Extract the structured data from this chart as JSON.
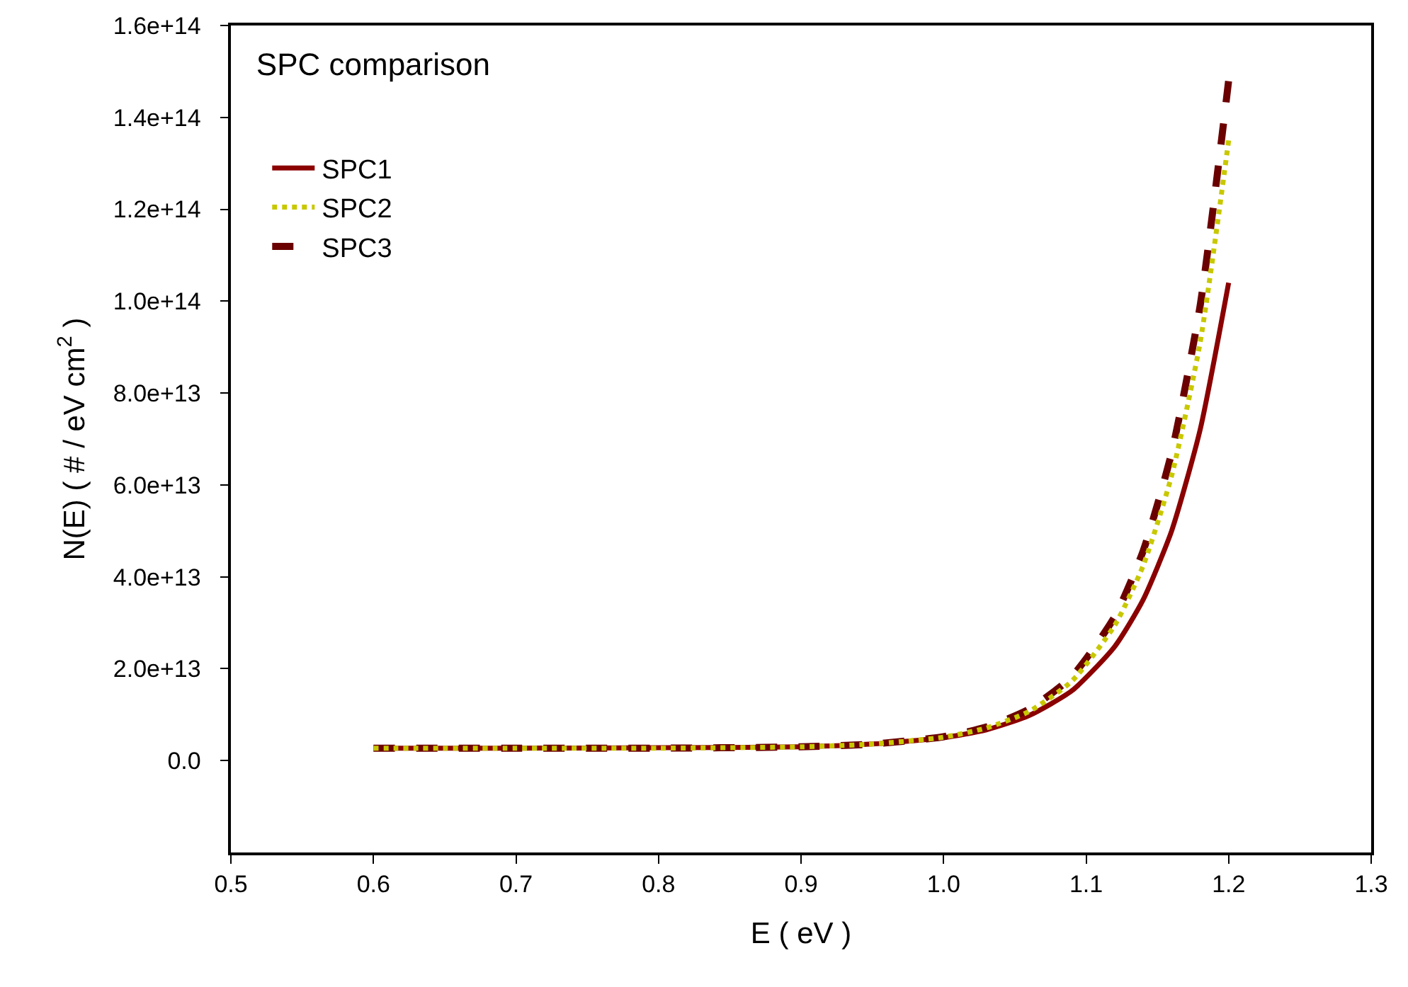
{
  "chart_data": {
    "type": "line",
    "title": "SPC comparison",
    "xlabel": "E ( eV )",
    "ylabel": "N(E) ( # / eV cm$^{2}$ )",
    "x": [
      0.6,
      0.7,
      0.8,
      0.9,
      0.95,
      1.0,
      1.03,
      1.06,
      1.09,
      1.12,
      1.14,
      1.16,
      1.18,
      1.2
    ],
    "series": [
      {
        "name": "SPC1",
        "color": "#8b0000",
        "line_style": "solid",
        "values": [
          2700000000000.0,
          2700000000000.0,
          2800000000000.0,
          3000000000000.0,
          3600000000000.0,
          5000000000000.0,
          6700000000000.0,
          9800000000000.0,
          15200000000000.0,
          24800000000000.0,
          35000000000000.0,
          50000000000000.0,
          72000000000000.0,
          104000000000000.0
        ]
      },
      {
        "name": "SPC2",
        "color": "#c8c800",
        "line_style": "dotted",
        "values": [
          2700000000000.0,
          2700000000000.0,
          2700000000000.0,
          3000000000000.0,
          3600000000000.0,
          5100000000000.0,
          7100000000000.0,
          10700000000000.0,
          17300000000000.0,
          29400000000000.0,
          42400000000000.0,
          62000000000000.0,
          91000000000000.0,
          135000000000000.0
        ]
      },
      {
        "name": "SPC3",
        "color": "#6b0000",
        "line_style": "dashed",
        "values": [
          2700000000000.0,
          2700000000000.0,
          2700000000000.0,
          3000000000000.0,
          3600000000000.0,
          5200000000000.0,
          7300000000000.0,
          11200000000000.0,
          18300000000000.0,
          31300000000000.0,
          45600000000000.0,
          67000000000000.0,
          99000000000000.0,
          148000000000000.0
        ]
      }
    ],
    "xlim": [
      0.5,
      1.3
    ],
    "xticks": [
      0.5,
      0.6,
      0.7,
      0.8,
      0.9,
      {
        "value": 1.0,
        "label": "1.0"
      },
      1.1,
      1.2,
      1.3
    ],
    "ylim": [
      -20000000000000.0,
      160000000000000.0
    ],
    "yticks": [
      {
        "value": 0,
        "label": "0.0"
      },
      {
        "value": 20000000000000.0,
        "label": "2.0e+13"
      },
      {
        "value": 40000000000000.0,
        "label": "4.0e+13"
      },
      {
        "value": 60000000000000.0,
        "label": "6.0e+13"
      },
      {
        "value": 80000000000000.0,
        "label": "8.0e+13"
      },
      {
        "value": 100000000000000.0,
        "label": "1.0e+14"
      },
      {
        "value": 120000000000000.0,
        "label": "1.2e+14"
      },
      {
        "value": 140000000000000.0,
        "label": "1.4e+14"
      },
      {
        "value": 160000000000000.0,
        "label": "1.6e+14"
      }
    ],
    "grid": false,
    "legend": "top left",
    "marker": "none"
  }
}
